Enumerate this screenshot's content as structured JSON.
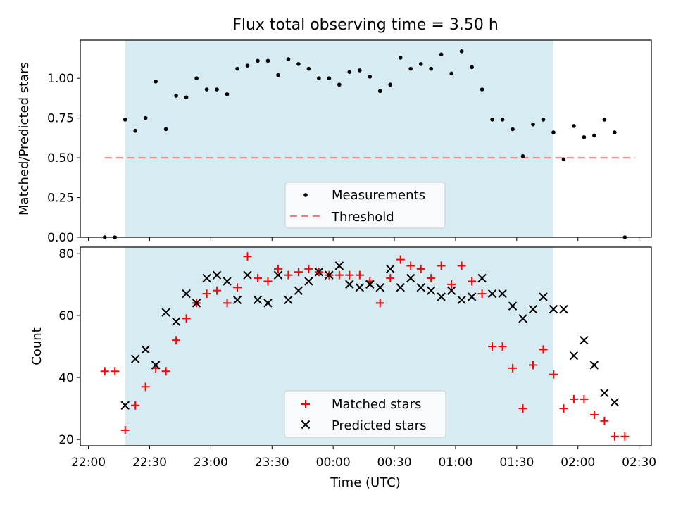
{
  "figure": {
    "title": "Flux total observing time = 3.50 h",
    "xlabel": "Time (UTC)"
  },
  "colors": {
    "span": "#add8e6",
    "measurement": "#000000",
    "threshold": "#f08080",
    "matched": "#ff0000",
    "predicted": "#000000"
  },
  "chart_data": [
    {
      "type": "scatter",
      "title": "Flux total observing time = 3.50 h",
      "xlabel": "",
      "ylabel": "Matched/Predicted stars",
      "xlim": [
        "21:56",
        "02:36"
      ],
      "ylim": [
        0,
        1.24
      ],
      "yticks": [
        "0.00",
        "0.25",
        "0.50",
        "0.75",
        "1.00"
      ],
      "shaded_span": [
        "22:18",
        "01:48"
      ],
      "legend": [
        "Measurements",
        "Threshold"
      ],
      "legend_position": "lower center",
      "threshold": {
        "name": "Threshold",
        "y": 0.5,
        "x": [
          "22:08",
          "02:28"
        ]
      },
      "series": [
        {
          "name": "Measurements",
          "x": [
            "22:08",
            "22:13",
            "22:18",
            "22:23",
            "22:28",
            "22:33",
            "22:38",
            "22:43",
            "22:48",
            "22:53",
            "22:58",
            "23:03",
            "23:08",
            "23:13",
            "23:18",
            "23:23",
            "23:28",
            "23:33",
            "23:38",
            "23:43",
            "23:48",
            "23:53",
            "23:58",
            "00:03",
            "00:08",
            "00:13",
            "00:18",
            "00:23",
            "00:28",
            "00:33",
            "00:38",
            "00:43",
            "00:48",
            "00:53",
            "00:58",
            "01:03",
            "01:08",
            "01:13",
            "01:18",
            "01:23",
            "01:28",
            "01:33",
            "01:38",
            "01:43",
            "01:48",
            "01:53",
            "01:58",
            "02:03",
            "02:08",
            "02:13",
            "02:18",
            "02:23"
          ],
          "y": [
            0.0,
            0.0,
            0.74,
            0.67,
            0.75,
            0.98,
            0.68,
            0.89,
            0.88,
            1.0,
            0.93,
            0.93,
            0.9,
            1.06,
            1.08,
            1.11,
            1.11,
            1.02,
            1.12,
            1.09,
            1.06,
            1.0,
            1.0,
            0.96,
            1.04,
            1.05,
            1.01,
            0.92,
            0.96,
            1.13,
            1.06,
            1.09,
            1.06,
            1.15,
            1.03,
            1.17,
            1.07,
            0.93,
            0.74,
            0.74,
            0.68,
            0.51,
            0.71,
            0.74,
            0.66,
            0.49,
            0.7,
            0.63,
            0.64,
            0.74,
            0.66,
            0.0
          ]
        }
      ]
    },
    {
      "type": "scatter",
      "title": "",
      "xlabel": "Time (UTC)",
      "ylabel": "Count",
      "xlim": [
        "21:56",
        "02:36"
      ],
      "ylim": [
        18,
        82
      ],
      "yticks": [
        "20",
        "40",
        "60",
        "80"
      ],
      "xticks": [
        "22:00",
        "22:30",
        "23:00",
        "23:30",
        "00:00",
        "00:30",
        "01:00",
        "01:30",
        "02:00",
        "02:30"
      ],
      "shaded_span": [
        "22:18",
        "01:48"
      ],
      "legend": [
        "Matched stars",
        "Predicted stars"
      ],
      "legend_position": "lower center",
      "series": [
        {
          "name": "Matched stars",
          "x": [
            "22:08",
            "22:13",
            "22:18",
            "22:23",
            "22:28",
            "22:33",
            "22:38",
            "22:43",
            "22:48",
            "22:53",
            "22:58",
            "23:03",
            "23:08",
            "23:13",
            "23:18",
            "23:23",
            "23:28",
            "23:33",
            "23:38",
            "23:43",
            "23:48",
            "23:53",
            "23:58",
            "00:03",
            "00:08",
            "00:13",
            "00:18",
            "00:23",
            "00:28",
            "00:33",
            "00:38",
            "00:43",
            "00:48",
            "00:53",
            "00:58",
            "01:03",
            "01:08",
            "01:13",
            "01:18",
            "01:23",
            "01:28",
            "01:33",
            "01:38",
            "01:43",
            "01:48",
            "01:53",
            "01:58",
            "02:03",
            "02:08",
            "02:13",
            "02:18",
            "02:23"
          ],
          "y": [
            42,
            42,
            23,
            31,
            37,
            43,
            42,
            52,
            59,
            64,
            67,
            68,
            64,
            69,
            79,
            72,
            71,
            75,
            73,
            74,
            75,
            74,
            73,
            73,
            73,
            73,
            71,
            64,
            72,
            78,
            76,
            75,
            72,
            76,
            70,
            76,
            71,
            67,
            50,
            50,
            43,
            30,
            44,
            49,
            41,
            30,
            33,
            33,
            28,
            26,
            21,
            21
          ]
        },
        {
          "name": "Predicted stars",
          "x": [
            "22:18",
            "22:23",
            "22:28",
            "22:33",
            "22:38",
            "22:43",
            "22:48",
            "22:53",
            "22:58",
            "23:03",
            "23:08",
            "23:13",
            "23:18",
            "23:23",
            "23:28",
            "23:33",
            "23:38",
            "23:43",
            "23:48",
            "23:53",
            "23:58",
            "00:03",
            "00:08",
            "00:13",
            "00:18",
            "00:23",
            "00:28",
            "00:33",
            "00:38",
            "00:43",
            "00:48",
            "00:53",
            "00:58",
            "01:03",
            "01:08",
            "01:13",
            "01:18",
            "01:23",
            "01:28",
            "01:33",
            "01:38",
            "01:43",
            "01:48",
            "01:53",
            "01:58",
            "02:03",
            "02:08",
            "02:13",
            "02:18"
          ],
          "y": [
            31,
            46,
            49,
            44,
            61,
            58,
            67,
            64,
            72,
            73,
            71,
            65,
            73,
            65,
            64,
            73,
            65,
            68,
            71,
            74,
            73,
            76,
            70,
            69,
            70,
            69,
            75,
            69,
            72,
            69,
            68,
            66,
            68,
            65,
            66,
            72,
            67,
            67,
            63,
            59,
            62,
            66,
            62,
            62,
            47,
            52,
            44,
            35,
            32
          ]
        }
      ]
    }
  ]
}
